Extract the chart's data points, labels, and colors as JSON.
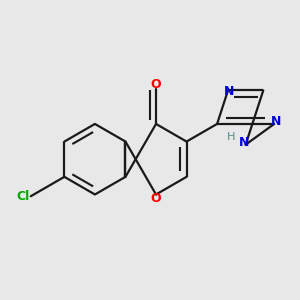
{
  "bg_color": "#e8e8e8",
  "bond_color": "#1a1a1a",
  "atom_colors": {
    "O": "#ff0000",
    "Cl": "#00aa00",
    "N": "#0000dd",
    "H": "#5a8a8a",
    "C": "#1a1a1a"
  },
  "line_width": 1.6,
  "fig_size": [
    3.0,
    3.0
  ],
  "dpi": 100
}
